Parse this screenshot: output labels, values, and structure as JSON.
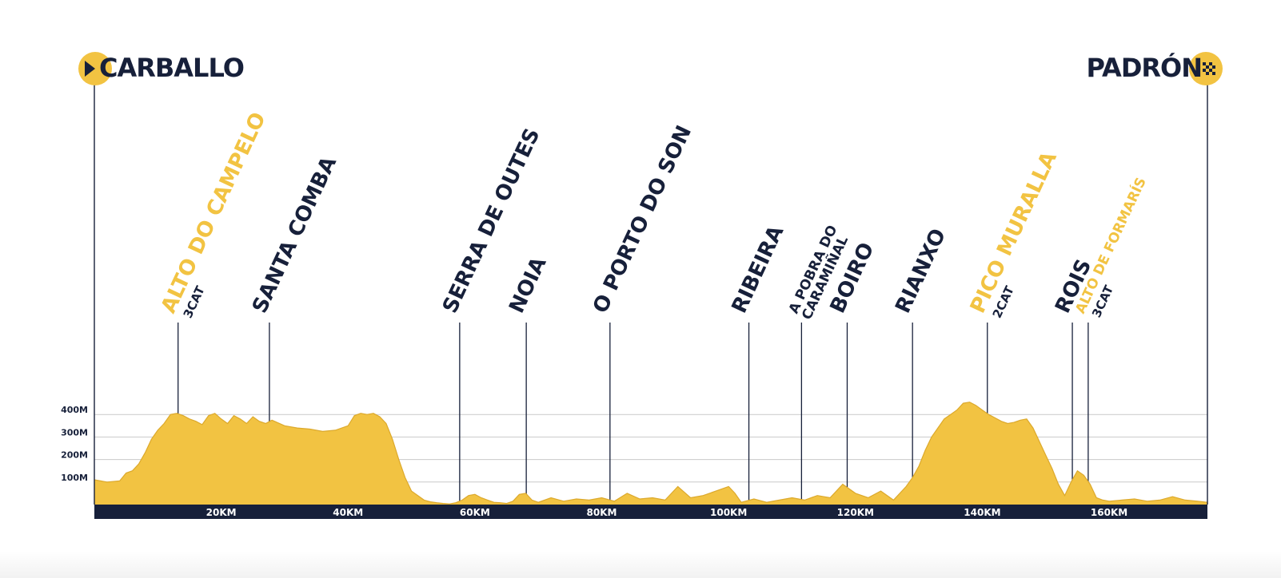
{
  "colors": {
    "navy": "#17203a",
    "yellow": "#f2c342",
    "grid": "#c9c9c9",
    "shade": "#dca92c"
  },
  "start": {
    "label": "CARBALLO",
    "icon": "play-icon"
  },
  "finish": {
    "label": "PADRÓN",
    "icon": "checkered-flag-icon"
  },
  "chart_data": {
    "type": "area",
    "title": "",
    "xlabel": "",
    "ylabel": "",
    "xlim": [
      0,
      175.5
    ],
    "ylim": [
      0,
      500
    ],
    "grid": true,
    "x_ticks": [
      {
        "value": 20,
        "label": "20KM"
      },
      {
        "value": 40,
        "label": "40KM"
      },
      {
        "value": 60,
        "label": "60KM"
      },
      {
        "value": 80,
        "label": "80KM"
      },
      {
        "value": 100,
        "label": "100KM"
      },
      {
        "value": 120,
        "label": "120KM"
      },
      {
        "value": 140,
        "label": "140KM"
      },
      {
        "value": 160,
        "label": "160KM"
      }
    ],
    "y_ticks": [
      {
        "value": 100,
        "label": "100M"
      },
      {
        "value": 200,
        "label": "200M"
      },
      {
        "value": 300,
        "label": "300M"
      },
      {
        "value": 400,
        "label": "400M"
      }
    ],
    "profile": {
      "x": [
        0,
        2,
        4,
        5,
        6,
        7,
        8,
        9,
        10,
        11,
        12,
        13,
        14,
        15,
        16,
        17,
        18,
        19,
        20,
        21,
        22,
        23,
        24,
        25,
        26,
        27,
        28,
        30,
        32,
        34,
        36,
        38,
        40,
        41,
        42,
        43,
        44,
        45,
        46,
        47,
        48,
        49,
        50,
        51,
        52,
        53,
        54,
        55,
        56,
        57,
        58,
        59,
        60,
        61,
        62,
        63,
        64,
        65,
        66,
        67,
        68,
        69,
        70,
        72,
        74,
        76,
        78,
        80,
        82,
        84,
        86,
        88,
        90,
        92,
        94,
        96,
        98,
        100,
        101,
        102,
        104,
        106,
        108,
        110,
        112,
        114,
        116,
        118,
        120,
        122,
        124,
        126,
        128,
        129,
        130,
        131,
        132,
        133,
        134,
        135,
        136,
        137,
        138,
        139,
        140,
        141,
        142,
        143,
        144,
        145,
        146,
        147,
        148,
        149,
        150,
        151,
        152,
        153,
        154,
        155,
        156,
        157,
        158,
        159,
        160,
        162,
        164,
        166,
        168,
        170,
        172,
        174,
        175.5
      ],
      "y": [
        110,
        100,
        105,
        140,
        150,
        180,
        230,
        290,
        330,
        360,
        400,
        405,
        395,
        380,
        370,
        355,
        395,
        405,
        380,
        360,
        395,
        380,
        360,
        390,
        370,
        360,
        375,
        350,
        340,
        335,
        325,
        330,
        350,
        395,
        405,
        400,
        405,
        390,
        360,
        290,
        200,
        120,
        60,
        40,
        20,
        12,
        8,
        5,
        3,
        8,
        20,
        40,
        45,
        30,
        20,
        10,
        8,
        5,
        15,
        45,
        50,
        20,
        10,
        30,
        15,
        25,
        20,
        30,
        15,
        50,
        25,
        30,
        20,
        80,
        30,
        40,
        60,
        80,
        50,
        10,
        25,
        10,
        20,
        30,
        20,
        40,
        30,
        90,
        50,
        30,
        60,
        20,
        80,
        120,
        170,
        240,
        300,
        340,
        380,
        400,
        420,
        450,
        455,
        440,
        420,
        400,
        385,
        370,
        360,
        365,
        375,
        380,
        340,
        280,
        220,
        160,
        90,
        40,
        100,
        150,
        130,
        90,
        30,
        20,
        15,
        20,
        25,
        15,
        20,
        35,
        20,
        15,
        10
      ]
    },
    "waypoints": [
      {
        "km": 13.2,
        "name": "ALTO DO CAMPELO",
        "category": "3CAT",
        "climb": true
      },
      {
        "km": 27.6,
        "name": "SANTA COMBA",
        "climb": false
      },
      {
        "km": 57.6,
        "name": "SERRA DE OUTES",
        "climb": false
      },
      {
        "km": 68.1,
        "name": "NOIA",
        "climb": false
      },
      {
        "km": 81.3,
        "name": "O PORTO DO SON",
        "climb": false
      },
      {
        "km": 103.2,
        "name": "RIBEIRA",
        "climb": false
      },
      {
        "km": 111.5,
        "name": "A POBRA DO",
        "name2": "CARAMIÑAL",
        "climb": false,
        "small": true
      },
      {
        "km": 118.7,
        "name": "BOIRO",
        "climb": false
      },
      {
        "km": 129.0,
        "name": "RIANXO",
        "climb": false
      },
      {
        "km": 140.8,
        "name": "PICO MURALLA",
        "category": "2CAT",
        "climb": true
      },
      {
        "km": 154.2,
        "name": "ROIS",
        "climb": false
      },
      {
        "km": 156.7,
        "name": "ALTO DE FORMARÍS",
        "category": "3CAT",
        "climb": true,
        "small": true
      }
    ]
  }
}
